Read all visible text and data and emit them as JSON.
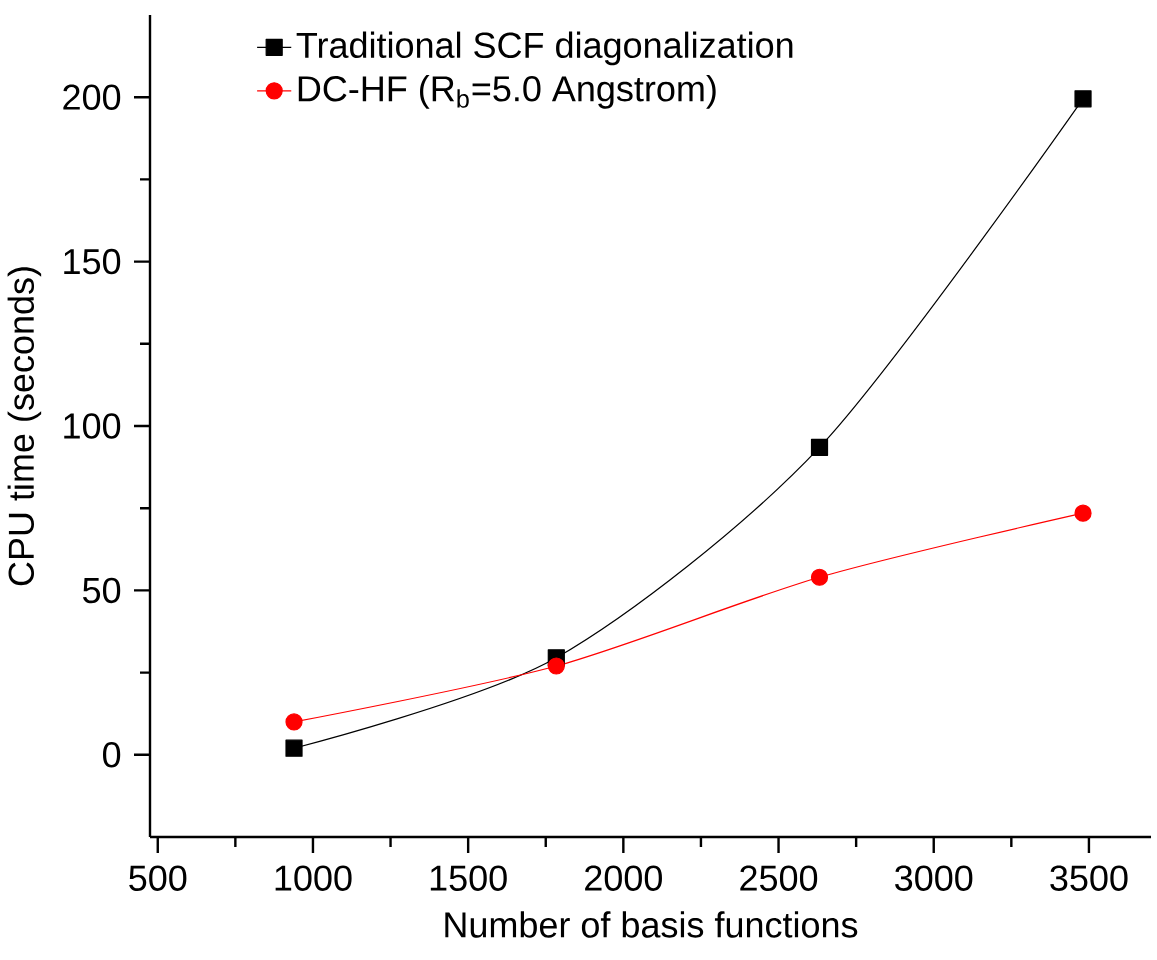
{
  "chart_data": {
    "type": "line",
    "xlabel": "Number of basis functions",
    "ylabel": "CPU time (seconds)",
    "x": [
      939,
      1784,
      2632,
      3481
    ],
    "series": [
      {
        "name": "Traditional SCF diagonalization",
        "color": "#000000",
        "marker": "square",
        "values": [
          2,
          29.5,
          93.5,
          199.5
        ]
      },
      {
        "name": "DC-HF (R$_{b}$=5.0 Angstrom)",
        "color": "#ff0000",
        "marker": "circle",
        "values": [
          10,
          27,
          54,
          73.5
        ]
      }
    ],
    "xlim": [
      475,
      3700
    ],
    "ylim": [
      -25,
      225
    ],
    "xticks": [
      500,
      1000,
      1500,
      2000,
      2500,
      3000,
      3500
    ],
    "yticks": [
      0,
      50,
      100,
      150,
      200
    ],
    "legend": "top left",
    "grid": false
  }
}
